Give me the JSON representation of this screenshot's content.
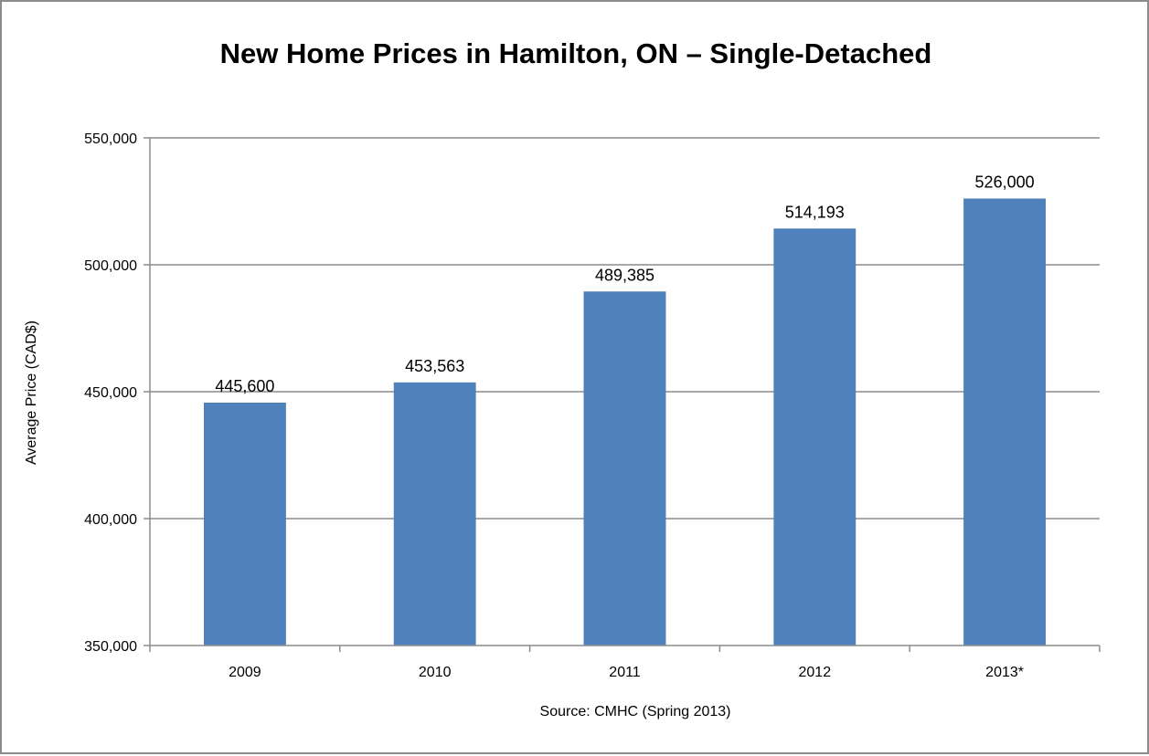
{
  "chart_data": {
    "type": "bar",
    "title": "New Home Prices in Hamilton, ON – Single-Detached",
    "xlabel": "Source: CMHC (Spring 2013)",
    "ylabel": "Average Price (CAD$)",
    "categories": [
      "2009",
      "2010",
      "2011",
      "2012",
      "2013*"
    ],
    "values": [
      445600,
      453563,
      489385,
      514193,
      526000
    ],
    "data_labels": [
      "445,600",
      "453,563",
      "489,385",
      "514,193",
      "526,000"
    ],
    "ylim": [
      350000,
      550000
    ],
    "yticks": [
      350000,
      400000,
      450000,
      500000,
      550000
    ],
    "ytick_labels": [
      "350,000",
      "400,000",
      "450,000",
      "500,000",
      "550,000"
    ],
    "grid": true,
    "legend": "none",
    "bar_color": "#4f81bd"
  }
}
